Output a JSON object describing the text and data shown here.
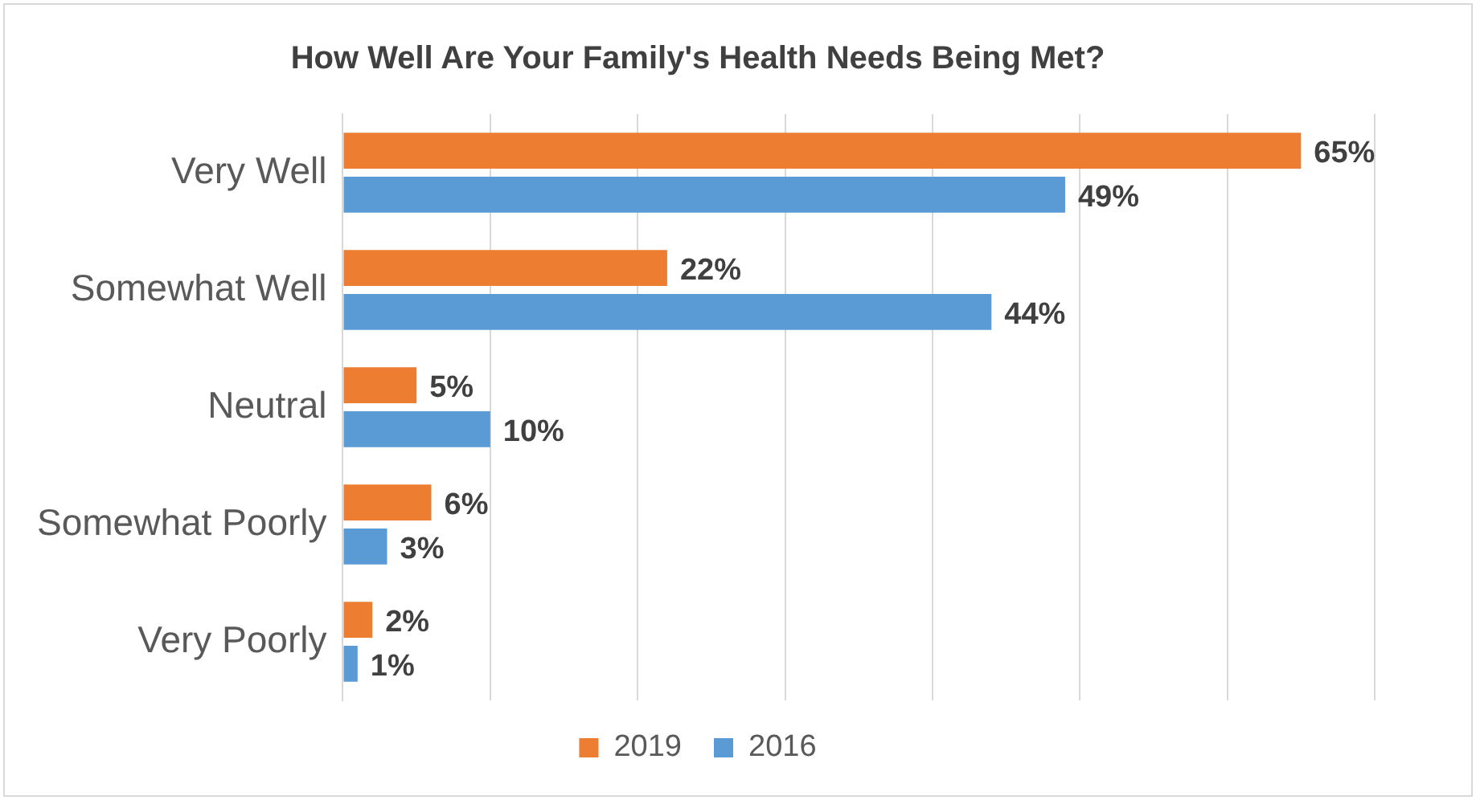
{
  "chart_data": {
    "type": "bar",
    "orientation": "horizontal",
    "title": "How Well Are Your Family's Health Needs Being Met?",
    "categories": [
      "Very Well",
      "Somewhat Well",
      "Neutral",
      "Somewhat Poorly",
      "Very Poorly"
    ],
    "series": [
      {
        "name": "2019",
        "color": "#ed7d31",
        "values": [
          65,
          22,
          5,
          6,
          2
        ],
        "value_labels": [
          "65%",
          "22%",
          "5%",
          "6%",
          "2%"
        ]
      },
      {
        "name": "2016",
        "color": "#5b9bd5",
        "values": [
          49,
          44,
          10,
          3,
          1
        ],
        "value_labels": [
          "49%",
          "44%",
          "10%",
          "3%",
          "1%"
        ]
      }
    ],
    "xlim": [
      0,
      70
    ],
    "xticks": [
      {
        "value": 0,
        "label": null
      },
      {
        "value": 10,
        "label": null
      },
      {
        "value": 20,
        "label": null
      },
      {
        "value": 30,
        "label": null
      },
      {
        "value": 40,
        "label": null
      },
      {
        "value": 50,
        "label": null
      },
      {
        "value": 60,
        "label": null
      },
      {
        "value": 70,
        "label": null
      }
    ],
    "tick_labels": "y",
    "grid": "x",
    "legend": "bottom"
  }
}
